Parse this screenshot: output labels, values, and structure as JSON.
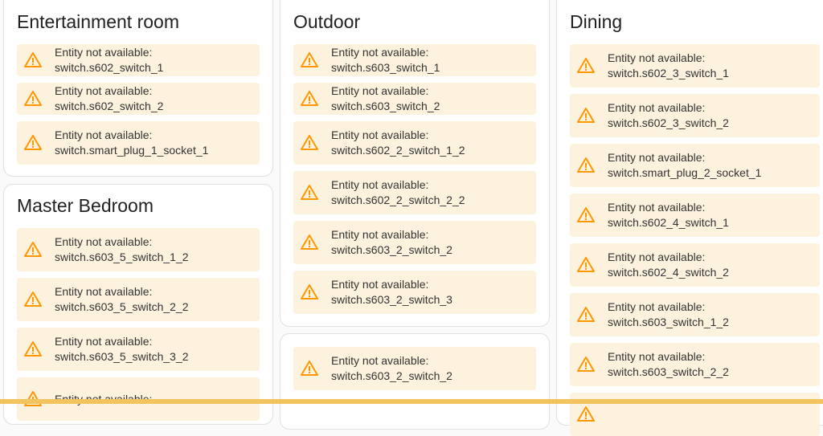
{
  "colors": {
    "warning_icon": "#ff9800",
    "warning_bg": "#fdf2de",
    "bottom_bar": "#f2c45f"
  },
  "cards": [
    {
      "title": "Entertainment room",
      "items": [
        {
          "text": "Entity not available: switch.s602_switch_1",
          "lines": 1
        },
        {
          "text": "Entity not available: switch.s602_switch_2",
          "lines": 1
        },
        {
          "text": "Entity not available: switch.smart_plug_1_socket_1",
          "lines": 2
        }
      ]
    },
    {
      "title": "Master Bedroom",
      "items": [
        {
          "text": "Entity not available: switch.s603_5_switch_1_2",
          "lines": 2
        },
        {
          "text": "Entity not available: switch.s603_5_switch_2_2",
          "lines": 2
        },
        {
          "text": "Entity not available: switch.s603_5_switch_3_2",
          "lines": 2
        },
        {
          "text": "Entity not available:",
          "lines": 2
        }
      ]
    },
    {
      "title": "Outdoor",
      "items": [
        {
          "text": "Entity not available: switch.s603_switch_1",
          "lines": 1
        },
        {
          "text": "Entity not available: switch.s603_switch_2",
          "lines": 1
        },
        {
          "text": "Entity not available: switch.s602_2_switch_1_2",
          "lines": 2
        },
        {
          "text": "Entity not available: switch.s602_2_switch_2_2",
          "lines": 2
        },
        {
          "text": "Entity not available: switch.s603_2_switch_2",
          "lines": 2
        },
        {
          "text": "Entity not available: switch.s603_2_switch_3",
          "lines": 2
        }
      ]
    },
    {
      "title": "",
      "items": [
        {
          "text": "Entity not available: switch.s603_2_switch_2",
          "lines": 2
        }
      ]
    },
    {
      "title": "Dining",
      "items": [
        {
          "text": "Entity not available: switch.s602_3_switch_1",
          "lines": 2
        },
        {
          "text": "Entity not available: switch.s602_3_switch_2",
          "lines": 2
        },
        {
          "text": "Entity not available: switch.smart_plug_2_socket_1",
          "lines": 2
        },
        {
          "text": "Entity not available: switch.s602_4_switch_1",
          "lines": 2
        },
        {
          "text": "Entity not available: switch.s602_4_switch_2",
          "lines": 2
        },
        {
          "text": "Entity not available: switch.s603_switch_1_2",
          "lines": 2
        },
        {
          "text": "Entity not available: switch.s603_switch_2_2",
          "lines": 2
        },
        {
          "text": "",
          "lines": 2
        }
      ]
    }
  ]
}
